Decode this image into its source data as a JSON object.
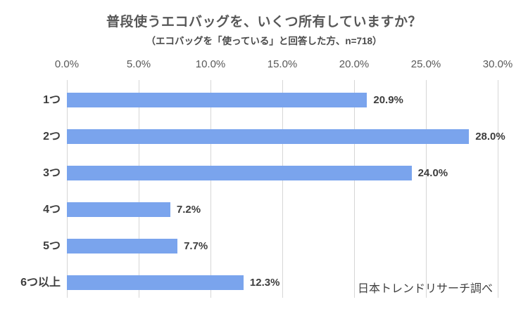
{
  "chart_data": {
    "type": "bar",
    "orientation": "horizontal",
    "title": "普段使うエコバッグを、いくつ所有していますか？",
    "subtitle": "（エコバッグを「使っている」と回答した方、n=718）",
    "source": "日本トレンドリサーチ調べ",
    "categories": [
      "1つ",
      "2つ",
      "3つ",
      "4つ",
      "5つ",
      "6つ以上"
    ],
    "values": [
      20.9,
      28.0,
      24.0,
      7.2,
      7.7,
      12.3
    ],
    "value_labels": [
      "20.9%",
      "28.0%",
      "24.0%",
      "7.2%",
      "7.7%",
      "12.3%"
    ],
    "xlabel": "",
    "ylabel": "",
    "xlim": [
      0,
      30
    ],
    "x_ticks": [
      0,
      5,
      10,
      15,
      20,
      25,
      30
    ],
    "x_tick_labels": [
      "0.0%",
      "5.0%",
      "10.0%",
      "15.0%",
      "20.0%",
      "25.0%",
      "30.0%"
    ],
    "grid": "vertical-only",
    "legend": "none",
    "bar_color": "#7AA4ED",
    "gridline_color": "#D6D6D6",
    "title_color": "#575757",
    "label_color": "#3D3D3D"
  }
}
